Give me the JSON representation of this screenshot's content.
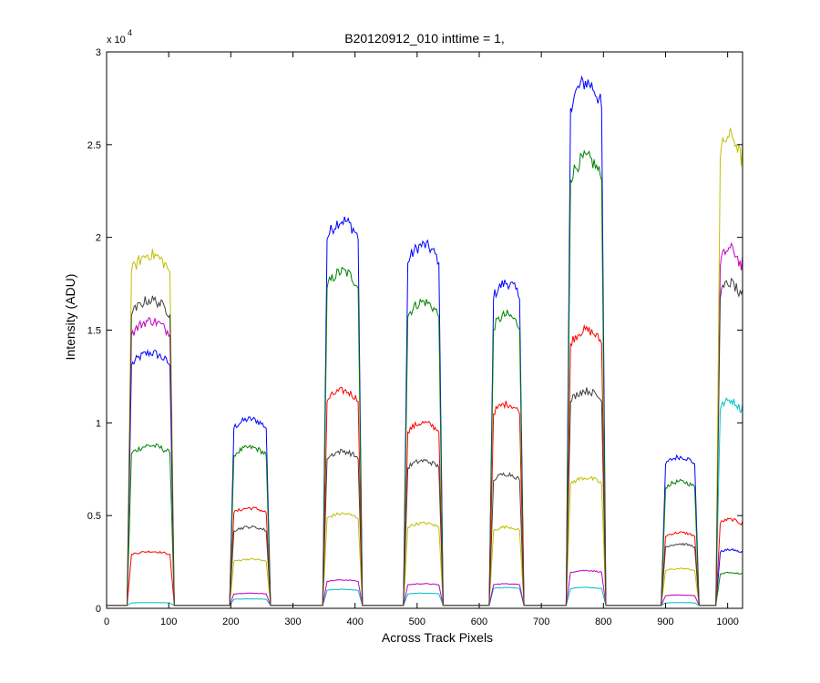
{
  "chart_data": {
    "type": "line",
    "title": "B20120912_010 inttime = 1,",
    "xlabel": "Across Track Pixels",
    "ylabel": "Intensity (ADU)",
    "y_multiplier_label": "x 10",
    "y_multiplier_exponent": "4",
    "xlim": [
      0,
      1024
    ],
    "ylim": [
      0,
      30000
    ],
    "x_ticks": [
      0,
      100,
      200,
      300,
      400,
      500,
      600,
      700,
      800,
      900,
      1000
    ],
    "y_ticks": [
      0,
      5000,
      10000,
      15000,
      20000,
      25000,
      30000
    ],
    "x_tick_labels": [
      "0",
      "100",
      "200",
      "300",
      "400",
      "500",
      "600",
      "700",
      "800",
      "900",
      "1000"
    ],
    "y_tick_labels": [
      "0",
      "0.5",
      "1",
      "1.5",
      "2",
      "2.5",
      "3"
    ],
    "grid": false,
    "legend": "none",
    "baseline": 150,
    "segments": [
      {
        "x_start": 35,
        "x_end": 107
      },
      {
        "x_start": 200,
        "x_end": 262
      },
      {
        "x_start": 350,
        "x_end": 410
      },
      {
        "x_start": 480,
        "x_end": 540
      },
      {
        "x_start": 618,
        "x_end": 670
      },
      {
        "x_start": 742,
        "x_end": 802
      },
      {
        "x_start": 895,
        "x_end": 952
      },
      {
        "x_start": 983,
        "x_end": 1024
      }
    ],
    "series": [
      {
        "color": "#0000ff",
        "values": [
          13500,
          10000,
          20500,
          19200,
          17200,
          27800,
          8000,
          3100
        ]
      },
      {
        "color": "#008000",
        "values": [
          8600,
          8500,
          17800,
          16200,
          15500,
          23800,
          6700,
          1900
        ]
      },
      {
        "color": "#ff0000",
        "values": [
          3000,
          5300,
          11500,
          9800,
          10800,
          14700,
          4000,
          4700
        ]
      },
      {
        "color": "#00bfbf",
        "values": [
          300,
          500,
          1000,
          800,
          1100,
          1100,
          300,
          11000
        ]
      },
      {
        "color": "#bf00bf",
        "values": [
          15200,
          800,
          1500,
          1300,
          1300,
          2000,
          700,
          19000
        ]
      },
      {
        "color": "#bfbf00",
        "values": [
          18700,
          2600,
          5000,
          4500,
          4300,
          6900,
          2100,
          25000
        ]
      },
      {
        "color": "#404040",
        "values": [
          16300,
          4300,
          8300,
          7800,
          7100,
          11500,
          3400,
          17200
        ]
      }
    ]
  }
}
